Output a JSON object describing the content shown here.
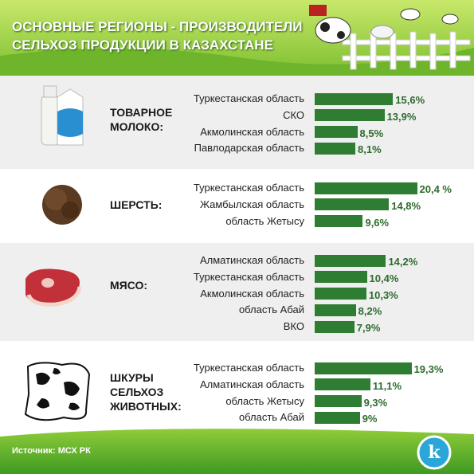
{
  "header": {
    "title": "ОСНОВНЫЕ РЕГИОНЫ - ПРОИЗВОДИТЕЛИ СЕЛЬХОЗ ПРОДУКЦИИ В КАЗАХСТАНЕ"
  },
  "source": "Источник: МСХ РК",
  "chart_data": [
    {
      "type": "bar",
      "title": "ТОВАРНОЕ МОЛОКО:",
      "color": "#2e7d32",
      "categories": [
        "Туркестанская область",
        "СКО",
        "Акмолинская область",
        "Павлодарская область"
      ],
      "values": [
        15.6,
        13.9,
        8.5,
        8.1
      ],
      "value_labels": [
        "15,6%",
        "13,9%",
        "8,5%",
        "8,1%"
      ]
    },
    {
      "type": "bar",
      "title": "ШЕРСТЬ:",
      "color": "#2e7d32",
      "categories": [
        "Туркестанская область",
        "Жамбылская область",
        "область Жетысу"
      ],
      "values": [
        20.4,
        14.8,
        9.6
      ],
      "value_labels": [
        "20,4 %",
        "14,8%",
        "9,6%"
      ]
    },
    {
      "type": "bar",
      "title": "МЯСО:",
      "color": "#2e7d32",
      "categories": [
        "Алматинская область",
        "Туркестанская область",
        "Акмолинская область",
        "область Абай",
        "ВКО"
      ],
      "values": [
        14.2,
        10.4,
        10.3,
        8.2,
        7.9
      ],
      "value_labels": [
        "14,2%",
        "10,4%",
        "10,3%",
        "8,2%",
        "7,9%"
      ]
    },
    {
      "type": "bar",
      "title": "ШКУРЫ СЕЛЬХОЗ ЖИВОТНЫХ:",
      "color": "#2e7d32",
      "categories": [
        "Туркестанская область",
        "Алматинская область",
        "область Жетысу",
        "область Абай"
      ],
      "values": [
        19.3,
        11.1,
        9.3,
        9
      ],
      "value_labels": [
        "19,3%",
        "11,1%",
        "9,3%",
        "9%"
      ]
    }
  ]
}
